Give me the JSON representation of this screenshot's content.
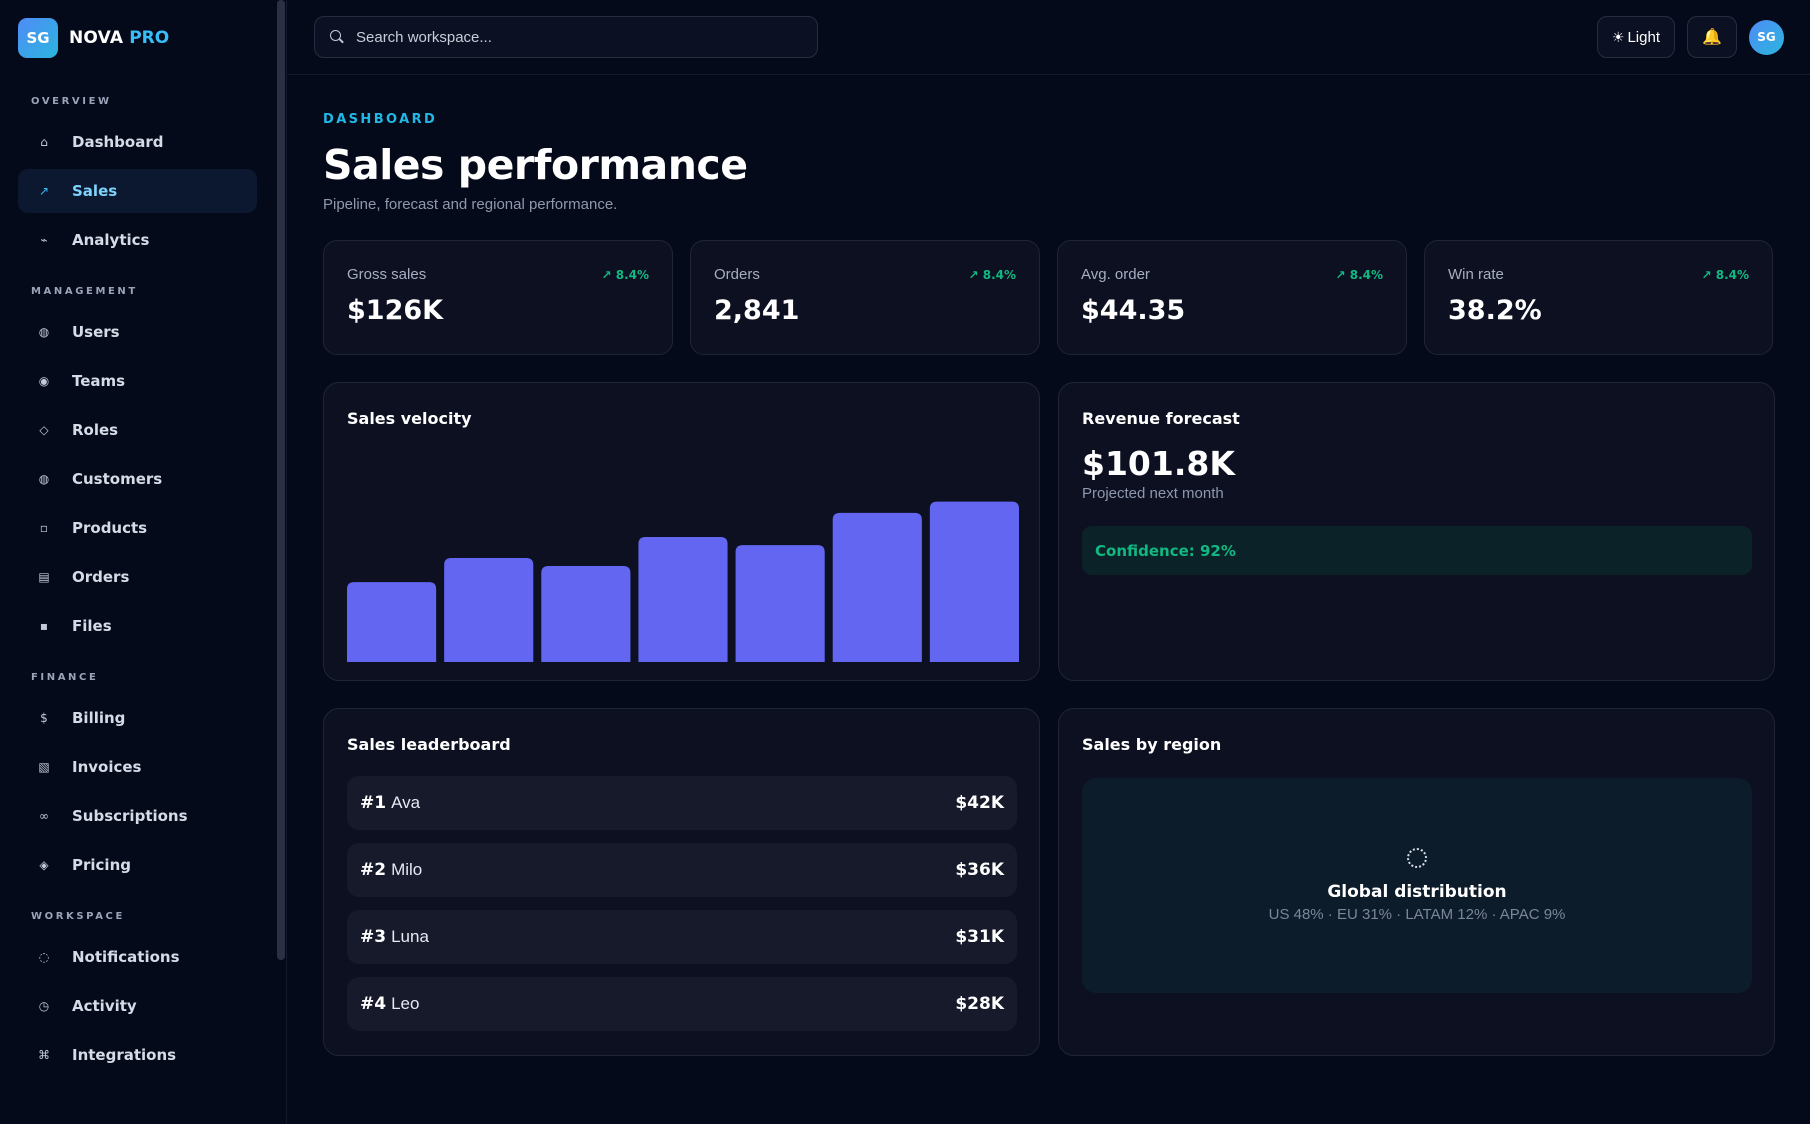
{
  "brand": {
    "logo": "SG",
    "name": "NOVA",
    "suffix": "PRO"
  },
  "sidebar": {
    "sections": [
      {
        "title": "OVERVIEW",
        "items": [
          {
            "label": "Dashboard",
            "icon": "home-icon",
            "glyph": "⌂"
          },
          {
            "label": "Sales",
            "icon": "trend-icon",
            "glyph": "↗",
            "active": true
          },
          {
            "label": "Analytics",
            "icon": "pulse-icon",
            "glyph": "⌁"
          }
        ]
      },
      {
        "title": "MANAGEMENT",
        "items": [
          {
            "label": "Users",
            "icon": "user-icon",
            "glyph": "◍"
          },
          {
            "label": "Teams",
            "icon": "team-icon",
            "glyph": "◉"
          },
          {
            "label": "Roles",
            "icon": "role-icon",
            "glyph": "◇"
          },
          {
            "label": "Customers",
            "icon": "customer-icon",
            "glyph": "◍"
          },
          {
            "label": "Products",
            "icon": "box-icon",
            "glyph": "▫"
          },
          {
            "label": "Orders",
            "icon": "orders-icon",
            "glyph": "▤"
          },
          {
            "label": "Files",
            "icon": "file-icon",
            "glyph": "▪"
          }
        ]
      },
      {
        "title": "FINANCE",
        "items": [
          {
            "label": "Billing",
            "icon": "dollar-icon",
            "glyph": "$"
          },
          {
            "label": "Invoices",
            "icon": "invoice-icon",
            "glyph": "▧"
          },
          {
            "label": "Subscriptions",
            "icon": "infinity-icon",
            "glyph": "∞"
          },
          {
            "label": "Pricing",
            "icon": "tag-icon",
            "glyph": "◈"
          }
        ]
      },
      {
        "title": "WORKSPACE",
        "items": [
          {
            "label": "Notifications",
            "icon": "bell-outline-icon",
            "glyph": "◌"
          },
          {
            "label": "Activity",
            "icon": "clock-icon",
            "glyph": "◷"
          },
          {
            "label": "Integrations",
            "icon": "command-icon",
            "glyph": "⌘"
          }
        ]
      }
    ]
  },
  "topbar": {
    "search_placeholder": "Search workspace...",
    "theme_label": "Light",
    "theme_glyph": "☀",
    "bell_glyph": "🔔",
    "avatar": "SG"
  },
  "header": {
    "eyebrow": "DASHBOARD",
    "title": "Sales performance",
    "subtitle": "Pipeline, forecast and regional performance."
  },
  "kpis": [
    {
      "label": "Gross sales",
      "value": "$126K",
      "delta": "↗ 8.4%"
    },
    {
      "label": "Orders",
      "value": "2,841",
      "delta": "↗ 8.4%"
    },
    {
      "label": "Avg. order",
      "value": "$44.35",
      "delta": "↗ 8.4%"
    },
    {
      "label": "Win rate",
      "value": "38.2%",
      "delta": "↗ 8.4%"
    }
  ],
  "velocity": {
    "title": "Sales velocity"
  },
  "chart_data": {
    "type": "bar",
    "values": [
      49,
      64,
      59,
      77,
      72,
      92,
      99
    ],
    "ylim": [
      0,
      100
    ],
    "color": "#6366f1"
  },
  "forecast": {
    "title": "Revenue forecast",
    "value": "$101.8K",
    "subtitle": "Projected next month",
    "confidence": "Confidence: 92%"
  },
  "leaderboard": {
    "title": "Sales leaderboard",
    "rows": [
      {
        "rank": "#1",
        "name": "Ava",
        "amount": "$42K"
      },
      {
        "rank": "#2",
        "name": "Milo",
        "amount": "$36K"
      },
      {
        "rank": "#3",
        "name": "Luna",
        "amount": "$31K"
      },
      {
        "rank": "#4",
        "name": "Leo",
        "amount": "$28K"
      }
    ]
  },
  "region": {
    "title": "Sales by region",
    "map_title": "Global distribution",
    "map_subtitle": "US 48% · EU 31% · LATAM 12% · APAC 9%"
  }
}
